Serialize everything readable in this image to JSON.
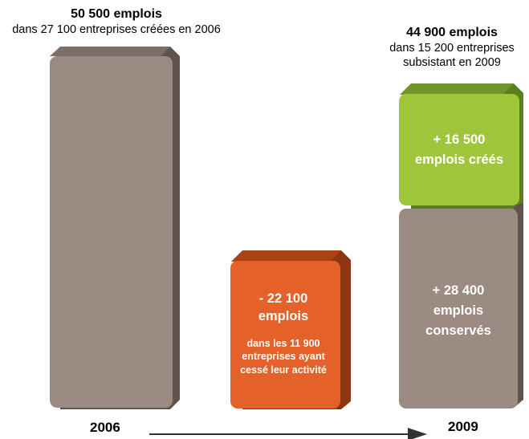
{
  "start": {
    "headline": "50 500 emplois",
    "subline": "dans 27 100 entreprises créées en 2006",
    "year": "2006",
    "color": "#9c8b82"
  },
  "end": {
    "headline": "44 900 emplois",
    "subline_1": "dans 15 200 entreprises",
    "subline_2": "subsistant en 2009",
    "year": "2009"
  },
  "lost": {
    "value": "- 22 100",
    "unit": "emplois",
    "detail_1": "dans les 11 900",
    "detail_2": "entreprises ayant",
    "detail_3": "cessé leur activité",
    "color": "#e5612a"
  },
  "created": {
    "value": "+ 16 500",
    "unit": "emplois créés",
    "color": "#9fc63b"
  },
  "kept": {
    "value": "+ 28 400",
    "unit_1": "emplois",
    "unit_2": "conservés",
    "color": "#9c8b82"
  }
}
